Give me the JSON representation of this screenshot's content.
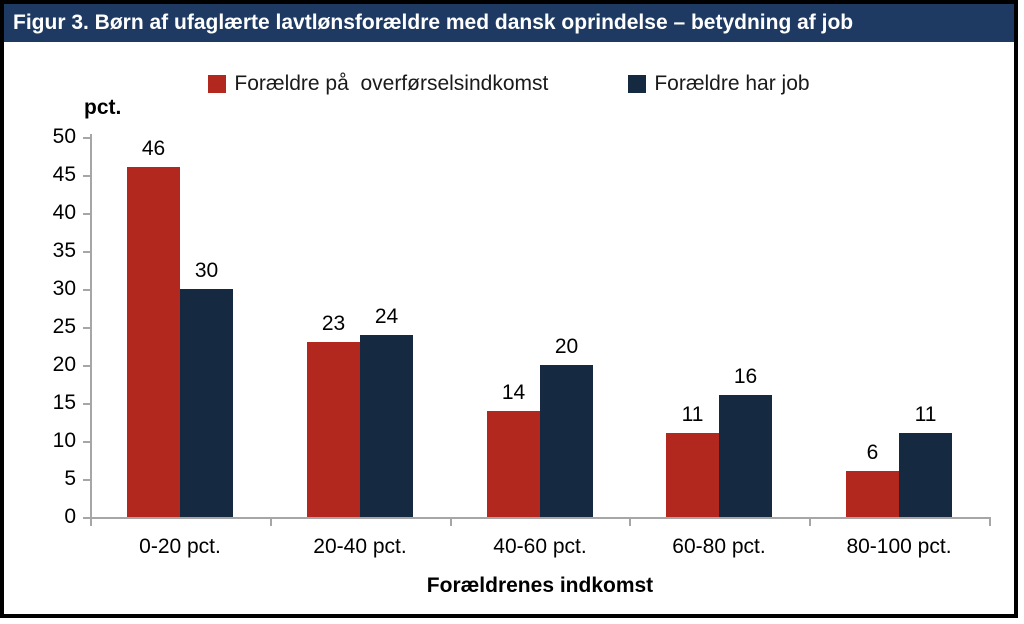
{
  "figure": {
    "title": "Figur 3. Børn af ufaglærte lavtlønsforældre med dansk oprindelse – betydning af job"
  },
  "chart_data": {
    "type": "bar",
    "title": "Figur 3. Børn af ufaglærte lavtlønsforældre med dansk oprindelse – betydning af job",
    "categories": [
      "0-20 pct.",
      "20-40 pct.",
      "40-60 pct.",
      "60-80 pct.",
      "80-100 pct."
    ],
    "series": [
      {
        "name": "Forældre på  overførselsindkomst",
        "color": "#B3281E",
        "values": [
          46,
          23,
          14,
          11,
          6
        ]
      },
      {
        "name": "Forældre har job",
        "color": "#152A40",
        "values": [
          30,
          24,
          20,
          16,
          11
        ]
      }
    ],
    "xlabel": "Forældrenes indkomst",
    "ylabel": "pct.",
    "ylim": [
      0,
      50
    ],
    "ytick_step": 5,
    "grid": false,
    "legend_position": "top",
    "data_labels": true,
    "colors": {
      "title_bar_background": "#1E3A62",
      "title_text": "#ffffff",
      "axis_gray": "#A6A6A6",
      "frame_border": "#000000"
    }
  }
}
